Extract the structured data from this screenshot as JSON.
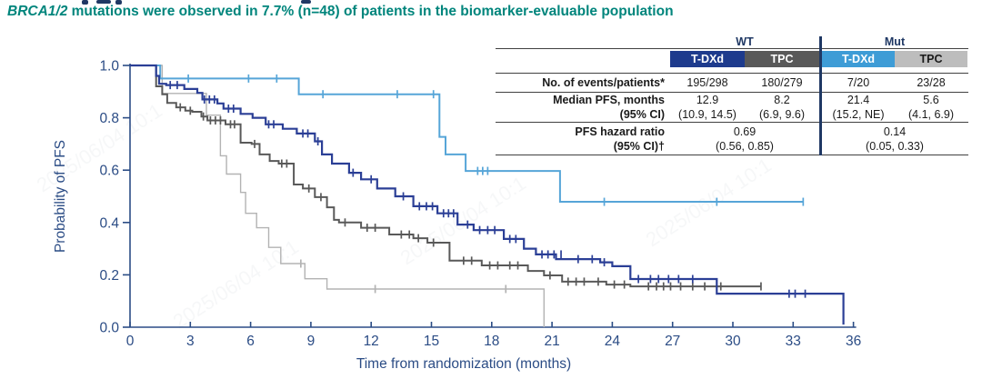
{
  "title": {
    "italic_part": "BRCA1/2",
    "rest": " mutations were observed in 7.7% (n=48) of patients in the biomarker-evaluable population"
  },
  "colors": {
    "title_teal": "#00857C",
    "header_navy": "#1F3864",
    "axis_navy": "#2B4C85",
    "wt_tdxd_blue": "#1E3B8D",
    "wt_tpc_gray": "#595959",
    "mut_tdxd_blue": "#3E9CD6",
    "mut_tpc_gray": "#BDBDBD"
  },
  "watermark": {
    "text": "2025/06/04 10:1"
  },
  "results_table": {
    "group_headers": [
      {
        "label": "WT"
      },
      {
        "label": "Mut"
      }
    ],
    "arm_headers": [
      {
        "label": "T-DXd",
        "bg": "#1E3B8D",
        "fg": "#FFFFFF"
      },
      {
        "label": "TPC",
        "bg": "#595959",
        "fg": "#FFFFFF"
      },
      {
        "label": "T-DXd",
        "bg": "#3E9CD6",
        "fg": "#FFFFFF"
      },
      {
        "label": "TPC",
        "bg": "#BDBDBD",
        "fg": "#1A1A1A"
      }
    ],
    "rows": [
      {
        "label": "No. of events/patients*",
        "values": [
          "195/298",
          "180/279",
          "7/20",
          "23/28"
        ]
      },
      {
        "label": "Median PFS, months",
        "label2": "(95% CI)",
        "values": [
          "12.9",
          "8.2",
          "21.4",
          "5.6"
        ],
        "values2": [
          "(10.9, 14.5)",
          "(6.9, 9.6)",
          "(15.2, NE)",
          "(4.1, 6.9)"
        ]
      },
      {
        "label": "PFS hazard ratio",
        "label2": "(95% CI)†",
        "values_span": [
          "0.69",
          "0.14"
        ],
        "values2_span": [
          "(0.56, 0.85)",
          "(0.05, 0.33)"
        ]
      }
    ]
  },
  "chart_data": {
    "type": "line",
    "subtype": "kaplan-meier-step",
    "title": "BRCA1/2 mutations were observed in 7.7% (n=48) of patients in the biomarker-evaluable population",
    "xlabel": "Time from randomization (months)",
    "ylabel": "Probability of PFS",
    "xlim": [
      0,
      36
    ],
    "ylim": [
      0.0,
      1.0
    ],
    "grid": false,
    "x_ticks": [
      "0",
      "3",
      "6",
      "9",
      "12",
      "15",
      "18",
      "21",
      "24",
      "27",
      "30",
      "33",
      "36"
    ],
    "y_ticks": [
      "0.0",
      "0.2",
      "0.4",
      "0.6",
      "0.8",
      "1.0"
    ],
    "series": [
      {
        "id": "mut-tpc",
        "name": "TPC (Mut)",
        "color": "#B3B3B3",
        "width": 1.4,
        "median_pfs": 5.6,
        "steps": [
          [
            0,
            1.0
          ],
          [
            1.6,
            0.893
          ],
          [
            3.8,
            0.81
          ],
          [
            4.5,
            0.655
          ],
          [
            4.8,
            0.585
          ],
          [
            5.5,
            0.515
          ],
          [
            5.75,
            0.435
          ],
          [
            6.3,
            0.38
          ],
          [
            6.9,
            0.305
          ],
          [
            7.5,
            0.243
          ],
          [
            8.7,
            0.185
          ],
          [
            9.8,
            0.146
          ],
          [
            20.6,
            0.0
          ]
        ],
        "end_month": 20.6,
        "censors": [
          [
            8.5,
            0.243
          ],
          [
            12.2,
            0.146
          ],
          [
            18.7,
            0.146
          ]
        ]
      },
      {
        "id": "wt-tpc",
        "name": "TPC (WT)",
        "color": "#595959",
        "width": 2,
        "median_pfs": 8.2,
        "steps": [
          [
            0,
            1.0
          ],
          [
            1.3,
            0.92
          ],
          [
            1.6,
            0.89
          ],
          [
            1.85,
            0.857
          ],
          [
            2.3,
            0.84
          ],
          [
            2.75,
            0.827
          ],
          [
            3.1,
            0.823
          ],
          [
            3.55,
            0.805
          ],
          [
            3.85,
            0.79
          ],
          [
            4.75,
            0.775
          ],
          [
            5.5,
            0.705
          ],
          [
            6.05,
            0.7
          ],
          [
            6.45,
            0.66
          ],
          [
            6.95,
            0.635
          ],
          [
            7.4,
            0.625
          ],
          [
            8.15,
            0.545
          ],
          [
            8.6,
            0.53
          ],
          [
            9.2,
            0.497
          ],
          [
            9.8,
            0.458
          ],
          [
            10.15,
            0.41
          ],
          [
            10.4,
            0.4
          ],
          [
            11.5,
            0.38
          ],
          [
            12.9,
            0.354
          ],
          [
            14.1,
            0.34
          ],
          [
            14.8,
            0.323
          ],
          [
            15.9,
            0.254
          ],
          [
            17.5,
            0.236
          ],
          [
            19.8,
            0.215
          ],
          [
            20.6,
            0.198
          ],
          [
            21.5,
            0.174
          ],
          [
            23.7,
            0.163
          ],
          [
            24.9,
            0.156
          ]
        ],
        "end_month": 31.4,
        "censors": [
          [
            2.5,
            0.84
          ],
          [
            3.0,
            0.827
          ],
          [
            3.65,
            0.805
          ],
          [
            4.0,
            0.79
          ],
          [
            4.25,
            0.79
          ],
          [
            4.5,
            0.79
          ],
          [
            5.0,
            0.775
          ],
          [
            5.2,
            0.775
          ],
          [
            6.2,
            0.7
          ],
          [
            7.55,
            0.625
          ],
          [
            7.8,
            0.625
          ],
          [
            8.9,
            0.53
          ],
          [
            9.5,
            0.497
          ],
          [
            10.7,
            0.4
          ],
          [
            11.8,
            0.38
          ],
          [
            12.2,
            0.38
          ],
          [
            13.5,
            0.354
          ],
          [
            13.9,
            0.354
          ],
          [
            14.35,
            0.34
          ],
          [
            15.1,
            0.323
          ],
          [
            16.6,
            0.254
          ],
          [
            17.0,
            0.254
          ],
          [
            17.9,
            0.236
          ],
          [
            18.3,
            0.236
          ],
          [
            18.9,
            0.236
          ],
          [
            19.3,
            0.236
          ],
          [
            20.9,
            0.198
          ],
          [
            21.8,
            0.174
          ],
          [
            22.2,
            0.174
          ],
          [
            22.6,
            0.174
          ],
          [
            23.3,
            0.174
          ],
          [
            24.1,
            0.163
          ],
          [
            24.6,
            0.163
          ],
          [
            25.8,
            0.156
          ],
          [
            26.2,
            0.156
          ],
          [
            26.55,
            0.156
          ],
          [
            26.9,
            0.156
          ],
          [
            27.4,
            0.156
          ],
          [
            28.0,
            0.156
          ],
          [
            28.6,
            0.156
          ],
          [
            29.4,
            0.156
          ],
          [
            31.4,
            0.156
          ]
        ]
      },
      {
        "id": "mut-tdxd",
        "name": "T-DXd (Mut)",
        "color": "#56A5D8",
        "width": 2,
        "median_pfs": 21.4,
        "steps": [
          [
            0,
            1.0
          ],
          [
            1.5,
            0.95
          ],
          [
            8.4,
            0.89
          ],
          [
            15.4,
            0.727
          ],
          [
            15.7,
            0.66
          ],
          [
            16.7,
            0.597
          ],
          [
            21.4,
            0.479
          ]
        ],
        "end_month": 33.5,
        "censors": [
          [
            2.9,
            0.95
          ],
          [
            5.9,
            0.95
          ],
          [
            7.3,
            0.95
          ],
          [
            9.6,
            0.89
          ],
          [
            13.3,
            0.89
          ],
          [
            15.1,
            0.89
          ],
          [
            17.3,
            0.597
          ],
          [
            17.55,
            0.597
          ],
          [
            17.8,
            0.597
          ],
          [
            23.6,
            0.479
          ],
          [
            29.2,
            0.479
          ],
          [
            33.5,
            0.479
          ]
        ]
      },
      {
        "id": "wt-tdxd",
        "name": "T-DXd (WT)",
        "color": "#2B3F96",
        "width": 2.2,
        "median_pfs": 12.9,
        "steps": [
          [
            0,
            1.0
          ],
          [
            1.3,
            0.96
          ],
          [
            1.45,
            0.93
          ],
          [
            1.8,
            0.925
          ],
          [
            2.7,
            0.91
          ],
          [
            3.35,
            0.895
          ],
          [
            3.6,
            0.87
          ],
          [
            4.35,
            0.855
          ],
          [
            4.65,
            0.835
          ],
          [
            5.5,
            0.815
          ],
          [
            6.1,
            0.8
          ],
          [
            6.75,
            0.775
          ],
          [
            7.6,
            0.758
          ],
          [
            8.3,
            0.74
          ],
          [
            9.2,
            0.71
          ],
          [
            9.55,
            0.66
          ],
          [
            10.05,
            0.625
          ],
          [
            10.9,
            0.59
          ],
          [
            11.5,
            0.565
          ],
          [
            12.3,
            0.53
          ],
          [
            13.2,
            0.5
          ],
          [
            14.1,
            0.462
          ],
          [
            15.3,
            0.435
          ],
          [
            16.3,
            0.392
          ],
          [
            17.1,
            0.371
          ],
          [
            18.6,
            0.337
          ],
          [
            19.6,
            0.3
          ],
          [
            20.2,
            0.278
          ],
          [
            21.2,
            0.26
          ],
          [
            23.4,
            0.248
          ],
          [
            24.0,
            0.233
          ],
          [
            24.9,
            0.184
          ],
          [
            29.2,
            0.128
          ],
          [
            35.5,
            0.01
          ]
        ],
        "end_month": 35.5,
        "censors": [
          [
            2.0,
            0.925
          ],
          [
            2.35,
            0.925
          ],
          [
            3.7,
            0.87
          ],
          [
            3.95,
            0.87
          ],
          [
            4.2,
            0.87
          ],
          [
            4.9,
            0.835
          ],
          [
            5.15,
            0.835
          ],
          [
            6.9,
            0.775
          ],
          [
            7.15,
            0.775
          ],
          [
            8.6,
            0.74
          ],
          [
            8.85,
            0.74
          ],
          [
            9.35,
            0.71
          ],
          [
            11.1,
            0.59
          ],
          [
            12.0,
            0.565
          ],
          [
            13.6,
            0.5
          ],
          [
            14.4,
            0.462
          ],
          [
            14.75,
            0.462
          ],
          [
            15.05,
            0.462
          ],
          [
            15.6,
            0.435
          ],
          [
            15.85,
            0.435
          ],
          [
            16.1,
            0.435
          ],
          [
            16.8,
            0.392
          ],
          [
            17.4,
            0.371
          ],
          [
            17.8,
            0.371
          ],
          [
            18.15,
            0.371
          ],
          [
            18.9,
            0.337
          ],
          [
            19.2,
            0.337
          ],
          [
            20.5,
            0.278
          ],
          [
            20.8,
            0.278
          ],
          [
            21.1,
            0.278
          ],
          [
            21.45,
            0.278
          ],
          [
            22.3,
            0.26
          ],
          [
            23.0,
            0.26
          ],
          [
            23.6,
            0.248
          ],
          [
            25.3,
            0.184
          ],
          [
            25.9,
            0.184
          ],
          [
            26.3,
            0.184
          ],
          [
            26.8,
            0.184
          ],
          [
            27.3,
            0.184
          ],
          [
            28.0,
            0.184
          ],
          [
            32.8,
            0.128
          ],
          [
            33.1,
            0.128
          ],
          [
            33.6,
            0.128
          ]
        ]
      }
    ]
  }
}
